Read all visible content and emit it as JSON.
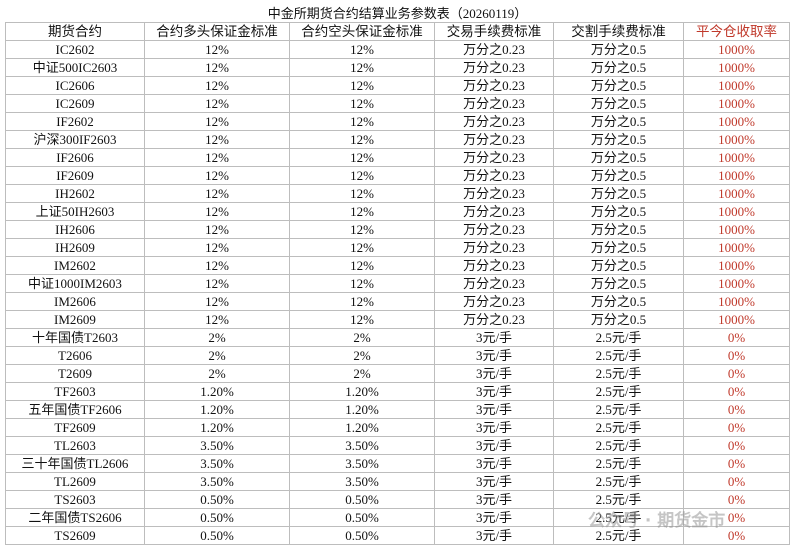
{
  "table": {
    "title": "中金所期货合约结算业务参数表（20260119）",
    "header": [
      "期货合约",
      "合约多头保证金标准",
      "合约空头保证金标准",
      "交易手续费标准",
      "交割手续费标准",
      "平今仓收取率"
    ],
    "rows": [
      [
        "IC2602",
        "12%",
        "12%",
        "万分之0.23",
        "万分之0.5",
        "1000%"
      ],
      [
        "中证500IC2603",
        "12%",
        "12%",
        "万分之0.23",
        "万分之0.5",
        "1000%"
      ],
      [
        "IC2606",
        "12%",
        "12%",
        "万分之0.23",
        "万分之0.5",
        "1000%"
      ],
      [
        "IC2609",
        "12%",
        "12%",
        "万分之0.23",
        "万分之0.5",
        "1000%"
      ],
      [
        "IF2602",
        "12%",
        "12%",
        "万分之0.23",
        "万分之0.5",
        "1000%"
      ],
      [
        "沪深300IF2603",
        "12%",
        "12%",
        "万分之0.23",
        "万分之0.5",
        "1000%"
      ],
      [
        "IF2606",
        "12%",
        "12%",
        "万分之0.23",
        "万分之0.5",
        "1000%"
      ],
      [
        "IF2609",
        "12%",
        "12%",
        "万分之0.23",
        "万分之0.5",
        "1000%"
      ],
      [
        "IH2602",
        "12%",
        "12%",
        "万分之0.23",
        "万分之0.5",
        "1000%"
      ],
      [
        "上证50IH2603",
        "12%",
        "12%",
        "万分之0.23",
        "万分之0.5",
        "1000%"
      ],
      [
        "IH2606",
        "12%",
        "12%",
        "万分之0.23",
        "万分之0.5",
        "1000%"
      ],
      [
        "IH2609",
        "12%",
        "12%",
        "万分之0.23",
        "万分之0.5",
        "1000%"
      ],
      [
        "IM2602",
        "12%",
        "12%",
        "万分之0.23",
        "万分之0.5",
        "1000%"
      ],
      [
        "中证1000IM2603",
        "12%",
        "12%",
        "万分之0.23",
        "万分之0.5",
        "1000%"
      ],
      [
        "IM2606",
        "12%",
        "12%",
        "万分之0.23",
        "万分之0.5",
        "1000%"
      ],
      [
        "IM2609",
        "12%",
        "12%",
        "万分之0.23",
        "万分之0.5",
        "1000%"
      ],
      [
        "十年国债T2603",
        "2%",
        "2%",
        "3元/手",
        "2.5元/手",
        "0%"
      ],
      [
        "T2606",
        "2%",
        "2%",
        "3元/手",
        "2.5元/手",
        "0%"
      ],
      [
        "T2609",
        "2%",
        "2%",
        "3元/手",
        "2.5元/手",
        "0%"
      ],
      [
        "TF2603",
        "1.20%",
        "1.20%",
        "3元/手",
        "2.5元/手",
        "0%"
      ],
      [
        "五年国债TF2606",
        "1.20%",
        "1.20%",
        "3元/手",
        "2.5元/手",
        "0%"
      ],
      [
        "TF2609",
        "1.20%",
        "1.20%",
        "3元/手",
        "2.5元/手",
        "0%"
      ],
      [
        "TL2603",
        "3.50%",
        "3.50%",
        "3元/手",
        "2.5元/手",
        "0%"
      ],
      [
        "三十年国债TL2606",
        "3.50%",
        "3.50%",
        "3元/手",
        "2.5元/手",
        "0%"
      ],
      [
        "TL2609",
        "3.50%",
        "3.50%",
        "3元/手",
        "2.5元/手",
        "0%"
      ],
      [
        "TS2603",
        "0.50%",
        "0.50%",
        "3元/手",
        "2.5元/手",
        "0%"
      ],
      [
        "二年国债TS2606",
        "0.50%",
        "0.50%",
        "3元/手",
        "2.5元/手",
        "0%"
      ],
      [
        "TS2609",
        "0.50%",
        "0.50%",
        "3元/手",
        "2.5元/手",
        "0%"
      ]
    ]
  },
  "watermark": "公众号 · 期货金市"
}
